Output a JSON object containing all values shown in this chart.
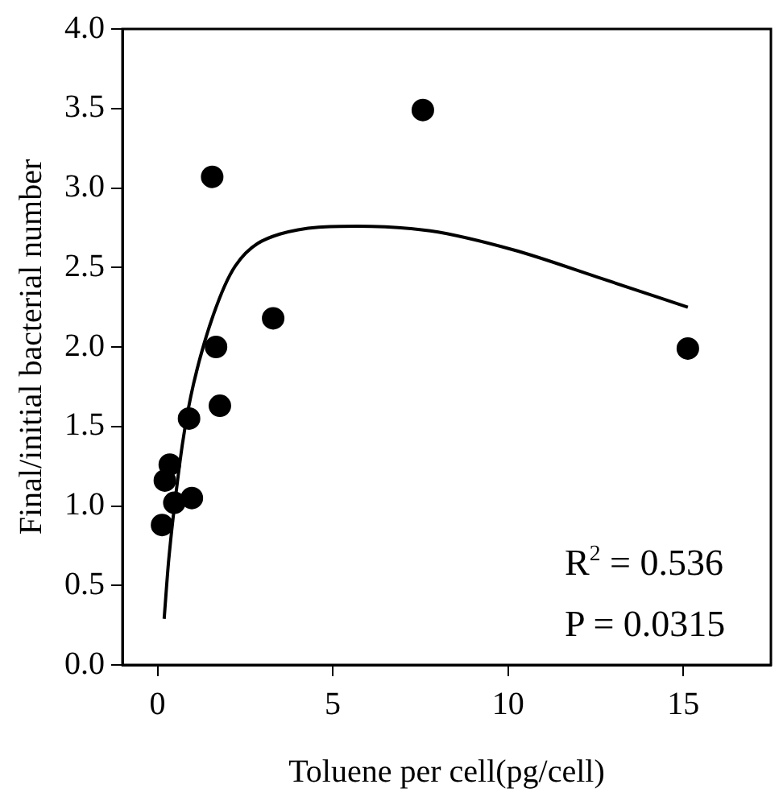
{
  "chart_data": {
    "type": "scatter",
    "xlabel": "Toluene per cell(pg/cell)",
    "ylabel": "Final/initial bacterial number",
    "xlim": [
      -1,
      17.5
    ],
    "xticks": [
      0,
      5,
      10,
      15
    ],
    "ylim": [
      0,
      4
    ],
    "yticks": [
      {
        "value": 0,
        "label": "0.0"
      },
      {
        "value": 0.5,
        "label": "0.5"
      },
      {
        "value": 1,
        "label": "1.0"
      },
      {
        "value": 1.5,
        "label": "1.5"
      },
      {
        "value": 2,
        "label": "2.0"
      },
      {
        "value": 2.5,
        "label": "2.5"
      },
      {
        "value": 3,
        "label": "3.0"
      },
      {
        "value": 3.5,
        "label": "3.5"
      },
      {
        "value": 4,
        "label": "4.0"
      }
    ],
    "grid": false,
    "legend": false,
    "marker": "circle",
    "series": [
      {
        "color": "#000000",
        "x": [
          0.13,
          0.21,
          0.35,
          0.48,
          0.98,
          0.9,
          1.56,
          1.67,
          1.78,
          3.3,
          7.57,
          15.13
        ],
        "values": [
          0.88,
          1.16,
          1.26,
          1.02,
          1.05,
          1.55,
          3.07,
          2.0,
          1.63,
          2.18,
          3.49,
          1.99
        ]
      },
      {
        "type": "line",
        "color": "#000000",
        "marker": "none",
        "line_style": "solid",
        "x": [
          0.19,
          0.32,
          0.63,
          0.79,
          1.03,
          1.59,
          2.22,
          3.49,
          5.7,
          7.78,
          10.16,
          12.54,
          15.13
        ],
        "values": [
          0.29,
          0.66,
          1.26,
          1.5,
          1.77,
          2.2,
          2.51,
          2.71,
          2.76,
          2.73,
          2.61,
          2.44,
          2.25
        ]
      }
    ],
    "annotations": [
      "R$^{2}$ = 0.536",
      "P = 0.0315"
    ]
  }
}
